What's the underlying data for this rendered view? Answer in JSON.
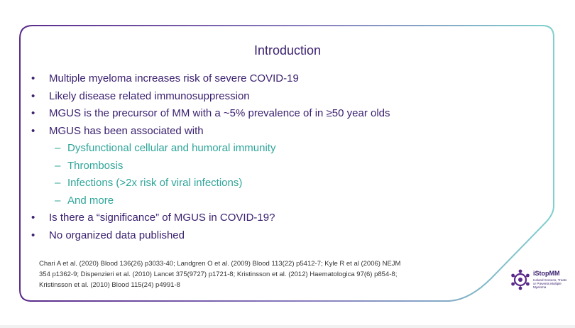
{
  "slide": {
    "title": "Introduction",
    "bullets": [
      {
        "level": 1,
        "text": "Multiple myeloma increases risk of severe COVID-19"
      },
      {
        "level": 1,
        "text": "Likely disease related immunosuppression"
      },
      {
        "level": 1,
        "text": "MGUS is the precursor of MM with a ~5% prevalence of in ≥50 year olds"
      },
      {
        "level": 1,
        "text": "MGUS has been associated with"
      },
      {
        "level": 2,
        "text": "Dysfunctional cellular and humoral immunity"
      },
      {
        "level": 2,
        "text": "Thrombosis"
      },
      {
        "level": 2,
        "text": "Infections (>2x risk of viral infections)"
      },
      {
        "level": 2,
        "text": "And more"
      },
      {
        "level": 1,
        "text": "Is there a “significance” of MGUS in COVID-19?"
      },
      {
        "level": 1,
        "text": "No organized data published"
      }
    ],
    "references": [
      "Chari A et al. (2020) Blood 136(26) p3033-40; Landgren O et al. (2009) Blood 113(22) p5412-7; Kyle R et al (2006) NEJM",
      "354 p1362-9; Dispenzieri et al. (2010) Lancet 375(9727) p1721-8; Kristinsson et al. (2012) Haematologica 97(6) p854-8;",
      "Kristinsson et al. (2010) Blood 115(24) p4991-8"
    ]
  },
  "logo": {
    "name": "iStopMM",
    "tagline": "Iceland Screens, Treats or Prevents Multiple Myeloma",
    "icon": "network-circle-icon"
  },
  "colors": {
    "title": "#3b2170",
    "sub_bullet": "#2fa59a",
    "frame_start": "#5a2a8a",
    "frame_end": "#7fd0cc"
  }
}
